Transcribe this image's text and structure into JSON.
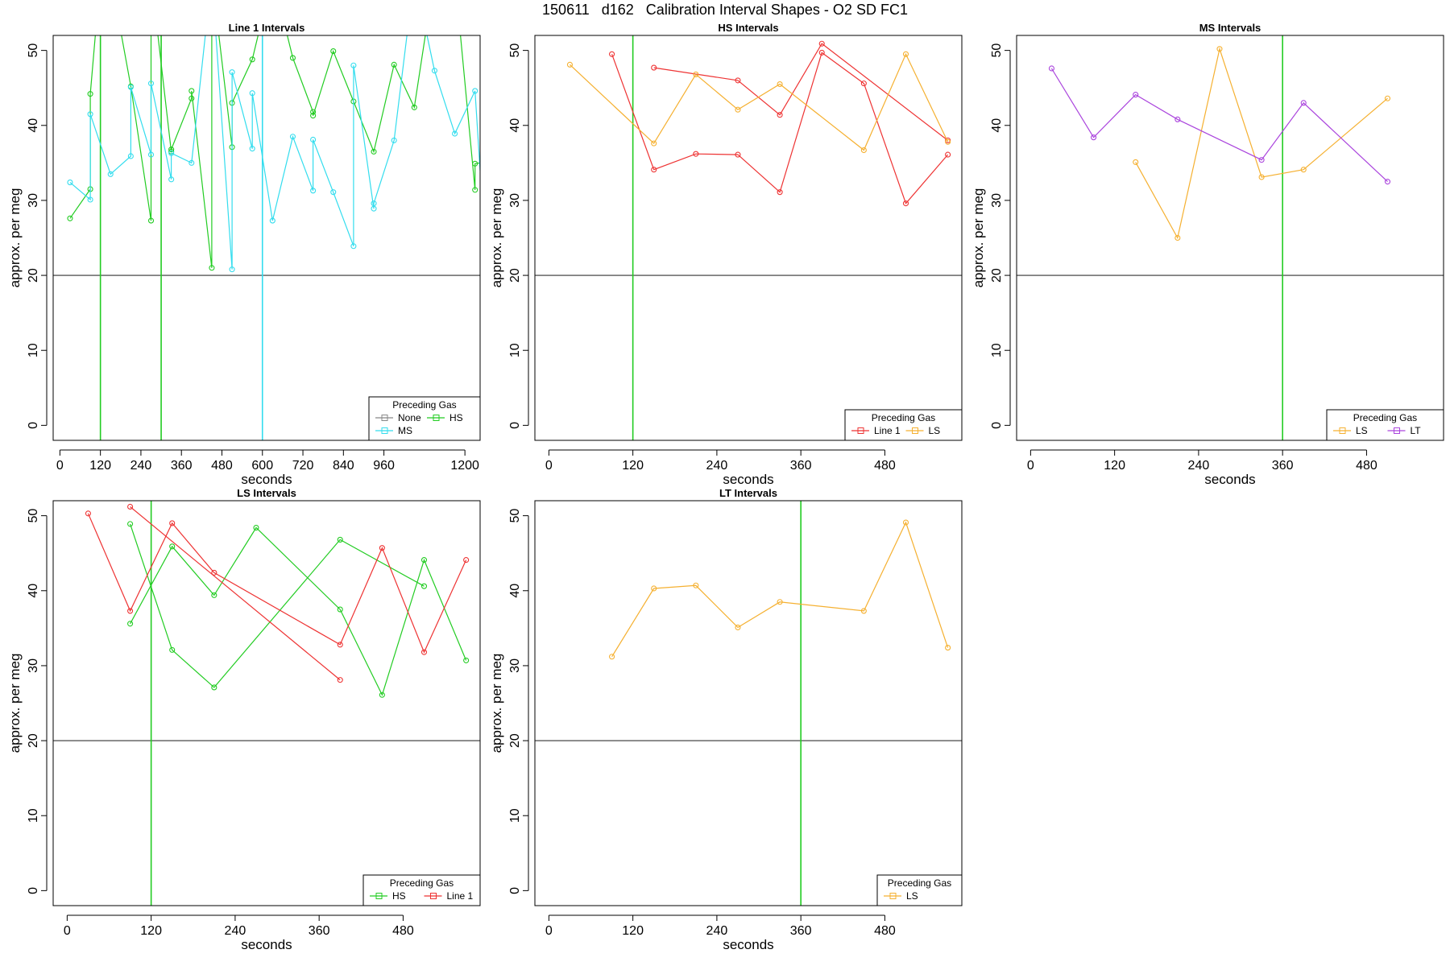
{
  "title": "150611   d162   Calibration Interval Shapes - O2 SD FC1",
  "colors": {
    "None": "#888888",
    "HS": "#22cc22",
    "MS": "#33ddee",
    "Line 1": "#ee3333",
    "LS": "#f5b030",
    "LT": "#aa44dd",
    "ref_h": "#333333"
  },
  "chart_data": [
    {
      "type": "line",
      "title": "Line 1 Intervals",
      "xlabel": "seconds",
      "ylabel": "approx. per meg",
      "xlim": [
        -20,
        1245
      ],
      "ylim": [
        -2,
        52
      ],
      "xticks": [
        0,
        120,
        240,
        360,
        480,
        600,
        720,
        840,
        960,
        1200
      ],
      "yticks": [
        0,
        10,
        20,
        30,
        40,
        50
      ],
      "hline": 20,
      "vlines": [
        {
          "x": 120,
          "color": "HS"
        },
        {
          "x": 300,
          "color": "HS"
        },
        {
          "x": 600,
          "color": "MS"
        }
      ],
      "legend": {
        "title": "Preceding Gas",
        "entries": [
          "None",
          "HS",
          "MS"
        ],
        "position": "bottom-right"
      },
      "series": [
        {
          "name": "HS",
          "x": [
            30,
            90,
            90,
            120,
            150,
            210,
            270,
            270,
            330,
            330,
            390,
            390,
            450,
            450,
            510,
            510,
            570,
            630,
            690,
            750,
            750,
            810,
            870,
            930,
            990,
            1050,
            1110,
            1170,
            1230,
            1230,
            1245
          ],
          "y": [
            27.6,
            31.5,
            44.2,
            60,
            60,
            45.2,
            27.3,
            60,
            36.5,
            36.8,
            43.6,
            44.6,
            21.0,
            60,
            37.1,
            43.0,
            48.8,
            60,
            49.0,
            41.8,
            41.3,
            49.9,
            43.2,
            36.5,
            48.1,
            42.4,
            60,
            60,
            31.4,
            34.9,
            35
          ]
        },
        {
          "name": "MS",
          "x": [
            30,
            90,
            90,
            150,
            210,
            210,
            270,
            270,
            330,
            330,
            390,
            450,
            510,
            510,
            570,
            570,
            630,
            690,
            750,
            750,
            810,
            870,
            870,
            930,
            930,
            990,
            1050,
            1110,
            1170,
            1230,
            1245
          ],
          "y": [
            32.4,
            30.1,
            41.5,
            33.5,
            35.9,
            45.1,
            36.1,
            45.6,
            32.8,
            36.3,
            35.0,
            60,
            20.8,
            47.1,
            36.9,
            44.3,
            27.3,
            38.5,
            31.3,
            38.1,
            31.1,
            23.9,
            48.0,
            28.9,
            29.6,
            38.0,
            60,
            47.3,
            38.9,
            44.6,
            34
          ]
        }
      ]
    },
    {
      "type": "line",
      "title": "HS Intervals",
      "xlabel": "seconds",
      "ylabel": "approx. per meg",
      "xlim": [
        -20,
        590
      ],
      "ylim": [
        -2,
        52
      ],
      "xticks": [
        0,
        120,
        240,
        360,
        480
      ],
      "yticks": [
        0,
        10,
        20,
        30,
        40,
        50
      ],
      "hline": 20,
      "vlines": [
        {
          "x": 120,
          "color": "HS"
        }
      ],
      "legend": {
        "title": "Preceding Gas",
        "entries": [
          "Line 1",
          "LS"
        ],
        "position": "bottom-right"
      },
      "series": [
        {
          "name": "Line 1",
          "x": [
            90,
            150,
            210,
            270,
            330,
            390,
            450,
            510,
            570
          ],
          "y": [
            49.5,
            34.1,
            36.2,
            36.1,
            31.1,
            49.7,
            45.6,
            29.6,
            36.1
          ]
        },
        {
          "name": "Line 1",
          "x": [
            150,
            270,
            330,
            390,
            570
          ],
          "y": [
            47.7,
            46.0,
            41.4,
            50.9,
            38.0
          ]
        },
        {
          "name": "LS",
          "x": [
            30,
            150,
            210,
            270,
            330,
            450,
            510,
            570
          ],
          "y": [
            48.1,
            37.6,
            46.8,
            42.1,
            45.5,
            36.7,
            49.5,
            37.8
          ]
        }
      ]
    },
    {
      "type": "line",
      "title": "MS Intervals",
      "xlabel": "seconds",
      "ylabel": "approx. per meg",
      "xlim": [
        -20,
        590
      ],
      "ylim": [
        -2,
        52
      ],
      "xticks": [
        0,
        120,
        240,
        360,
        480
      ],
      "yticks": [
        0,
        10,
        20,
        30,
        40,
        50
      ],
      "hline": 20,
      "vlines": [
        {
          "x": 360,
          "color": "HS"
        }
      ],
      "legend": {
        "title": "Preceding Gas",
        "entries": [
          "LS",
          "LT"
        ],
        "position": "bottom-right"
      },
      "series": [
        {
          "name": "LS",
          "x": [
            150,
            210,
            270,
            330,
            390,
            510
          ],
          "y": [
            35.1,
            25.0,
            50.2,
            33.1,
            34.1,
            43.6
          ]
        },
        {
          "name": "LT",
          "x": [
            30,
            90,
            150,
            210,
            330,
            390,
            510
          ],
          "y": [
            47.6,
            38.4,
            44.1,
            40.8,
            35.4,
            43.0,
            32.5
          ]
        }
      ]
    },
    {
      "type": "line",
      "title": "LS Intervals",
      "xlabel": "seconds",
      "ylabel": "approx. per meg",
      "xlim": [
        -20,
        590
      ],
      "ylim": [
        -2,
        52
      ],
      "xticks": [
        0,
        120,
        240,
        360,
        480
      ],
      "yticks": [
        0,
        10,
        20,
        30,
        40,
        50
      ],
      "hline": 20,
      "vlines": [
        {
          "x": 120,
          "color": "HS"
        }
      ],
      "legend": {
        "title": "Preceding Gas",
        "entries": [
          "HS",
          "Line 1"
        ],
        "position": "bottom-right"
      },
      "series": [
        {
          "name": "HS",
          "x": [
            90,
            150,
            210,
            270,
            390,
            450,
            510,
            570
          ],
          "y": [
            35.6,
            45.9,
            39.4,
            48.4,
            37.5,
            26.1,
            44.1,
            30.7
          ]
        },
        {
          "name": "HS",
          "x": [
            90,
            150,
            210,
            390,
            510
          ],
          "y": [
            48.9,
            32.1,
            27.1,
            46.8,
            40.6
          ]
        },
        {
          "name": "Line 1",
          "x": [
            30,
            90,
            150,
            210,
            390,
            450,
            510,
            570
          ],
          "y": [
            50.3,
            37.3,
            49.0,
            42.4,
            32.8,
            45.7,
            31.8,
            44.1
          ]
        },
        {
          "name": "Line 1",
          "x": [
            90,
            390
          ],
          "y": [
            51.2,
            28.1
          ]
        }
      ]
    },
    {
      "type": "line",
      "title": "LT Intervals",
      "xlabel": "seconds",
      "ylabel": "approx. per meg",
      "xlim": [
        -20,
        590
      ],
      "ylim": [
        -2,
        52
      ],
      "xticks": [
        0,
        120,
        240,
        360,
        480
      ],
      "yticks": [
        0,
        10,
        20,
        30,
        40,
        50
      ],
      "hline": 20,
      "vlines": [
        {
          "x": 360,
          "color": "HS"
        }
      ],
      "legend": {
        "title": "Preceding Gas",
        "entries": [
          "LS"
        ],
        "position": "bottom-right"
      },
      "series": [
        {
          "name": "LS",
          "x": [
            90,
            150,
            210,
            270,
            330,
            450,
            510,
            570
          ],
          "y": [
            31.2,
            40.3,
            40.7,
            35.1,
            38.5,
            37.3,
            49.1,
            32.4
          ]
        }
      ]
    }
  ]
}
